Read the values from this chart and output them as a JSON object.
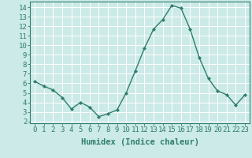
{
  "x": [
    0,
    1,
    2,
    3,
    4,
    5,
    6,
    7,
    8,
    9,
    10,
    11,
    12,
    13,
    14,
    15,
    16,
    17,
    18,
    19,
    20,
    21,
    22,
    23
  ],
  "y": [
    6.2,
    5.7,
    5.3,
    4.5,
    3.3,
    4.0,
    3.5,
    2.5,
    2.8,
    3.2,
    5.0,
    7.3,
    9.7,
    11.7,
    12.7,
    14.2,
    13.9,
    11.7,
    8.7,
    6.5,
    5.2,
    4.8,
    3.7,
    4.8
  ],
  "line_color": "#2e7d6e",
  "marker": "D",
  "marker_size": 2.0,
  "bg_color": "#cceae7",
  "grid_color": "#ffffff",
  "xlabel": "Humidex (Indice chaleur)",
  "xlim": [
    -0.5,
    23.5
  ],
  "ylim": [
    1.8,
    14.6
  ],
  "yticks": [
    2,
    3,
    4,
    5,
    6,
    7,
    8,
    9,
    10,
    11,
    12,
    13,
    14
  ],
  "xticks": [
    0,
    1,
    2,
    3,
    4,
    5,
    6,
    7,
    8,
    9,
    10,
    11,
    12,
    13,
    14,
    15,
    16,
    17,
    18,
    19,
    20,
    21,
    22,
    23
  ],
  "tick_fontsize": 6.5,
  "xlabel_fontsize": 7.5,
  "linewidth": 1.0
}
